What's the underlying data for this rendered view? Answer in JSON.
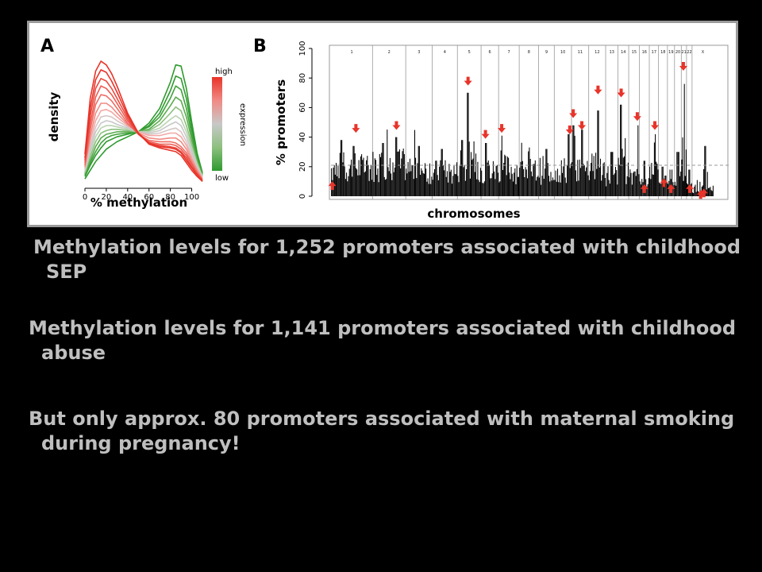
{
  "captions": [
    "Methylation levels for 1,252 promoters associated with childhood SEP",
    "Methylation levels for 1,141 promoters associated with childhood abuse",
    "But only approx. 80 promoters associated with maternal smoking during pregnancy!"
  ],
  "chart_data": [
    {
      "panel": "A",
      "type": "line",
      "xlabel": "% methylation",
      "ylabel": "density",
      "xlim": [
        0,
        110
      ],
      "xticks": [
        0,
        20,
        40,
        60,
        80,
        100
      ],
      "legend": {
        "title": "expression",
        "high": "high",
        "low": "low",
        "placement": "right",
        "colors": [
          "#e8342a",
          "#f08a84",
          "#c8c8c8",
          "#8dc07f",
          "#2e9a2e"
        ]
      },
      "x": [
        0,
        5,
        10,
        15,
        20,
        25,
        30,
        40,
        50,
        60,
        70,
        80,
        85,
        90,
        95,
        100,
        105,
        110
      ],
      "series": [
        {
          "color": "#e8342a",
          "values": [
            0.25,
            0.7,
            0.92,
            1.0,
            0.97,
            0.9,
            0.8,
            0.58,
            0.42,
            0.33,
            0.3,
            0.28,
            0.27,
            0.24,
            0.18,
            0.12,
            0.07,
            0.03
          ]
        },
        {
          "color": "#e8342a",
          "values": [
            0.22,
            0.62,
            0.85,
            0.93,
            0.91,
            0.84,
            0.75,
            0.56,
            0.42,
            0.34,
            0.31,
            0.3,
            0.29,
            0.26,
            0.2,
            0.14,
            0.08,
            0.03
          ]
        },
        {
          "color": "#ea4a40",
          "values": [
            0.2,
            0.56,
            0.78,
            0.86,
            0.84,
            0.78,
            0.7,
            0.54,
            0.41,
            0.34,
            0.32,
            0.31,
            0.3,
            0.27,
            0.22,
            0.15,
            0.09,
            0.04
          ]
        },
        {
          "color": "#ec5a50",
          "values": [
            0.18,
            0.5,
            0.71,
            0.8,
            0.78,
            0.73,
            0.66,
            0.52,
            0.41,
            0.35,
            0.33,
            0.33,
            0.32,
            0.29,
            0.24,
            0.17,
            0.1,
            0.04
          ]
        },
        {
          "color": "#ee6c64",
          "values": [
            0.16,
            0.45,
            0.65,
            0.73,
            0.72,
            0.68,
            0.62,
            0.5,
            0.41,
            0.36,
            0.35,
            0.35,
            0.34,
            0.31,
            0.26,
            0.18,
            0.1,
            0.04
          ]
        },
        {
          "color": "#f08a84",
          "values": [
            0.15,
            0.4,
            0.58,
            0.66,
            0.66,
            0.63,
            0.58,
            0.49,
            0.42,
            0.38,
            0.37,
            0.38,
            0.38,
            0.35,
            0.29,
            0.2,
            0.12,
            0.05
          ]
        },
        {
          "color": "#f2a7a3",
          "values": [
            0.14,
            0.36,
            0.52,
            0.6,
            0.61,
            0.59,
            0.55,
            0.48,
            0.43,
            0.4,
            0.4,
            0.42,
            0.42,
            0.39,
            0.32,
            0.22,
            0.13,
            0.05
          ]
        },
        {
          "color": "#d6c6c6",
          "values": [
            0.13,
            0.32,
            0.47,
            0.55,
            0.56,
            0.55,
            0.52,
            0.47,
            0.43,
            0.41,
            0.42,
            0.45,
            0.46,
            0.43,
            0.35,
            0.24,
            0.14,
            0.06
          ]
        },
        {
          "color": "#c8c8c8",
          "values": [
            0.12,
            0.29,
            0.43,
            0.5,
            0.52,
            0.51,
            0.49,
            0.46,
            0.43,
            0.42,
            0.44,
            0.49,
            0.51,
            0.48,
            0.39,
            0.27,
            0.15,
            0.06
          ]
        },
        {
          "color": "#b9d4b1",
          "values": [
            0.11,
            0.26,
            0.39,
            0.46,
            0.48,
            0.48,
            0.47,
            0.45,
            0.43,
            0.43,
            0.46,
            0.53,
            0.56,
            0.53,
            0.43,
            0.3,
            0.17,
            0.07
          ]
        },
        {
          "color": "#8dc07f",
          "values": [
            0.1,
            0.23,
            0.35,
            0.42,
            0.44,
            0.45,
            0.45,
            0.44,
            0.43,
            0.44,
            0.49,
            0.58,
            0.63,
            0.6,
            0.48,
            0.33,
            0.18,
            0.07
          ]
        },
        {
          "color": "#5aab4f",
          "values": [
            0.09,
            0.2,
            0.31,
            0.38,
            0.41,
            0.42,
            0.43,
            0.43,
            0.43,
            0.45,
            0.52,
            0.64,
            0.71,
            0.68,
            0.55,
            0.37,
            0.2,
            0.08
          ]
        },
        {
          "color": "#3fa23a",
          "values": [
            0.08,
            0.18,
            0.27,
            0.34,
            0.38,
            0.4,
            0.41,
            0.42,
            0.43,
            0.47,
            0.55,
            0.7,
            0.8,
            0.77,
            0.62,
            0.41,
            0.22,
            0.09
          ]
        },
        {
          "color": "#2e9a2e",
          "values": [
            0.07,
            0.16,
            0.24,
            0.3,
            0.35,
            0.37,
            0.39,
            0.41,
            0.43,
            0.48,
            0.58,
            0.76,
            0.88,
            0.86,
            0.7,
            0.46,
            0.24,
            0.1
          ]
        },
        {
          "color": "#2e9a2e",
          "values": [
            0.05,
            0.12,
            0.19,
            0.24,
            0.29,
            0.32,
            0.35,
            0.39,
            0.43,
            0.5,
            0.62,
            0.83,
            0.97,
            0.96,
            0.78,
            0.51,
            0.26,
            0.1
          ]
        }
      ]
    },
    {
      "panel": "B",
      "type": "bar",
      "xlabel": "chromosomes",
      "ylabel": "% promoters",
      "ylim": [
        0,
        100
      ],
      "yticks": [
        0,
        20,
        40,
        60,
        80,
        100
      ],
      "threshold": 21,
      "chromosomes": [
        {
          "label": "1",
          "width": 13.5,
          "base": 24,
          "peaks": [
            [
              0.1,
              12
            ],
            [
              0.25,
              38
            ],
            [
              0.55,
              34
            ]
          ]
        },
        {
          "label": "2",
          "width": 10.8,
          "base": 26,
          "peaks": [
            [
              0.72,
              40
            ],
            [
              0.3,
              36
            ]
          ]
        },
        {
          "label": "3",
          "width": 8.6,
          "base": 22,
          "peaks": [
            [
              0.5,
              34
            ]
          ]
        },
        {
          "label": "4",
          "width": 8.2,
          "base": 20,
          "peaks": [
            [
              0.4,
              32
            ]
          ]
        },
        {
          "label": "5",
          "width": 7.7,
          "base": 24,
          "peaks": [
            [
              0.45,
              70
            ],
            [
              0.2,
              38
            ]
          ]
        },
        {
          "label": "6",
          "width": 5.7,
          "base": 21,
          "peaks": [
            [
              0.3,
              36
            ]
          ]
        },
        {
          "label": "7",
          "width": 6.7,
          "base": 23,
          "peaks": [
            [
              0.15,
              41
            ]
          ]
        },
        {
          "label": "8",
          "width": 6.3,
          "base": 21,
          "peaks": [
            [
              0.5,
              33
            ]
          ]
        },
        {
          "label": "9",
          "width": 5.1,
          "base": 22,
          "peaks": [
            [
              0.5,
              32
            ]
          ]
        },
        {
          "label": "10",
          "width": 5.6,
          "base": 22,
          "peaks": [
            [
              0.85,
              42
            ]
          ]
        },
        {
          "label": "11",
          "width": 5.6,
          "base": 23,
          "peaks": [
            [
              0.1,
              48
            ],
            [
              0.6,
              45
            ]
          ]
        },
        {
          "label": "12",
          "width": 5.5,
          "base": 24,
          "peaks": [
            [
              0.55,
              58
            ]
          ]
        },
        {
          "label": "13",
          "width": 4.0,
          "base": 18,
          "peaks": [
            [
              0.5,
              30
            ]
          ]
        },
        {
          "label": "14",
          "width": 3.5,
          "base": 22,
          "peaks": [
            [
              0.3,
              62
            ]
          ]
        },
        {
          "label": "15",
          "width": 3.5,
          "base": 20,
          "peaks": [
            [
              0.8,
              48
            ]
          ]
        },
        {
          "label": "16",
          "width": 3.2,
          "base": 10,
          "peaks": [
            [
              0.5,
              24
            ],
            [
              0.2,
              8
            ]
          ]
        },
        {
          "label": "17",
          "width": 3.0,
          "base": 24,
          "peaks": [
            [
              0.6,
              42
            ]
          ]
        },
        {
          "label": "18",
          "width": 2.9,
          "base": 8,
          "peaks": [
            [
              0.5,
              20
            ],
            [
              0.8,
              14
            ]
          ]
        },
        {
          "label": "19",
          "width": 2.3,
          "base": 8,
          "peaks": [
            [
              0.5,
              18
            ]
          ]
        },
        {
          "label": "20",
          "width": 2.2,
          "base": 20,
          "peaks": [
            [
              0.5,
              30
            ]
          ]
        },
        {
          "label": "21",
          "width": 1.7,
          "base": 16,
          "peaks": [
            [
              0.5,
              76
            ]
          ]
        },
        {
          "label": "22",
          "width": 1.8,
          "base": 10,
          "peaks": [
            [
              0.5,
              18
            ],
            [
              0.7,
              8
            ]
          ]
        },
        {
          "label": "X",
          "width": 7.0,
          "base": 6,
          "peaks": [
            [
              0.6,
              34
            ],
            [
              0.85,
              4
            ],
            [
              0.9,
              3
            ]
          ]
        }
      ],
      "arrow_color": "#e8342a",
      "arrows": [
        {
          "chr": 0,
          "pos": 0.03,
          "dir": "up",
          "y": 8
        },
        {
          "chr": 0,
          "pos": 0.6,
          "dir": "down",
          "y": 44
        },
        {
          "chr": 1,
          "pos": 0.72,
          "dir": "down",
          "y": 46
        },
        {
          "chr": 4,
          "pos": 0.45,
          "dir": "down",
          "y": 76
        },
        {
          "chr": 5,
          "pos": 0.25,
          "dir": "down",
          "y": 40
        },
        {
          "chr": 6,
          "pos": 0.15,
          "dir": "down",
          "y": 44
        },
        {
          "chr": 9,
          "pos": 0.9,
          "dir": "down",
          "y": 43
        },
        {
          "chr": 10,
          "pos": 0.1,
          "dir": "down",
          "y": 54
        },
        {
          "chr": 10,
          "pos": 0.6,
          "dir": "down",
          "y": 46
        },
        {
          "chr": 11,
          "pos": 0.55,
          "dir": "down",
          "y": 70
        },
        {
          "chr": 13,
          "pos": 0.3,
          "dir": "down",
          "y": 68
        },
        {
          "chr": 14,
          "pos": 0.8,
          "dir": "down",
          "y": 52
        },
        {
          "chr": 15,
          "pos": 0.5,
          "dir": "up",
          "y": 6
        },
        {
          "chr": 16,
          "pos": 0.6,
          "dir": "down",
          "y": 46
        },
        {
          "chr": 17,
          "pos": 0.6,
          "dir": "up",
          "y": 10
        },
        {
          "chr": 18,
          "pos": 0.5,
          "dir": "up",
          "y": 6
        },
        {
          "chr": 20,
          "pos": 0.4,
          "dir": "down",
          "y": 86
        },
        {
          "chr": 21,
          "pos": 0.6,
          "dir": "up",
          "y": 6
        },
        {
          "chr": 22,
          "pos": 0.4,
          "dir": "up",
          "y": 2
        },
        {
          "chr": 22,
          "pos": 0.55,
          "dir": "up",
          "y": 3
        }
      ]
    }
  ]
}
